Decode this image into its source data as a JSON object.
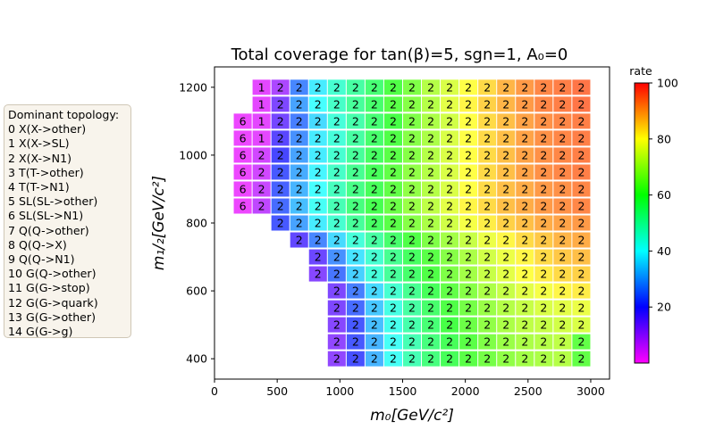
{
  "chart_data": {
    "type": "heatmap",
    "title": "Total coverage for tan(β)=5, sgn=1, A₀=0",
    "xlabel": "m₀[GeV/c²]",
    "ylabel": "m₁/₂[GeV/c²]",
    "xlim": [
      0,
      3150
    ],
    "ylim": [
      340,
      1260
    ],
    "x_ticks": [
      0,
      500,
      1000,
      1500,
      2000,
      2500,
      3000
    ],
    "y_ticks": [
      400,
      600,
      800,
      1000,
      1200
    ],
    "grid": false,
    "colorbar": {
      "label": "rate",
      "range": [
        0,
        100
      ],
      "ticks": [
        20,
        40,
        60,
        80,
        100
      ],
      "colormap": "gist_rainbow_r"
    },
    "x_centers": [
      225,
      375,
      525,
      675,
      825,
      975,
      1125,
      1275,
      1425,
      1575,
      1725,
      1875,
      2025,
      2175,
      2325,
      2475,
      2625,
      2775,
      2925
    ],
    "y_centers": [
      1200,
      1150,
      1100,
      1050,
      1000,
      950,
      900,
      850,
      800,
      750,
      700,
      650,
      600,
      550,
      500,
      450,
      400
    ],
    "rows": [
      {
        "y": 1200,
        "x_start": 375,
        "labels": [
          1,
          2,
          2,
          2,
          2,
          2,
          2,
          2,
          2,
          2,
          2,
          2,
          2,
          2,
          2,
          2,
          2,
          2
        ],
        "rates": [
          3,
          9,
          27,
          38,
          45,
          50,
          55,
          61,
          66,
          72,
          76,
          80,
          84,
          88,
          91,
          93,
          94,
          95
        ]
      },
      {
        "y": 1150,
        "x_start": 375,
        "labels": [
          1,
          2,
          2,
          2,
          2,
          2,
          2,
          2,
          2,
          2,
          2,
          2,
          2,
          2,
          2,
          2,
          2,
          2
        ],
        "rates": [
          3,
          14,
          30,
          40,
          46,
          51,
          56,
          62,
          67,
          72,
          77,
          81,
          85,
          88,
          91,
          93,
          94,
          95
        ]
      },
      {
        "y": 1100,
        "x_start": 225,
        "labels": [
          6,
          1,
          2,
          2,
          2,
          2,
          2,
          2,
          2,
          2,
          2,
          2,
          2,
          2,
          2,
          2,
          2,
          2,
          2
        ],
        "rates": [
          2,
          3,
          15,
          26,
          36,
          44,
          49,
          55,
          60,
          66,
          71,
          75,
          80,
          84,
          87,
          90,
          92,
          93,
          94
        ]
      },
      {
        "y": 1050,
        "x_start": 225,
        "labels": [
          6,
          1,
          2,
          2,
          2,
          2,
          2,
          2,
          2,
          2,
          2,
          2,
          2,
          2,
          2,
          2,
          2,
          2,
          2
        ],
        "rates": [
          2,
          3,
          18,
          28,
          38,
          44,
          50,
          56,
          61,
          67,
          71,
          76,
          80,
          84,
          87,
          90,
          92,
          93,
          94
        ]
      },
      {
        "y": 1000,
        "x_start": 225,
        "labels": [
          6,
          2,
          2,
          2,
          2,
          2,
          2,
          2,
          2,
          2,
          2,
          2,
          2,
          2,
          2,
          2,
          2,
          2,
          2
        ],
        "rates": [
          2,
          5,
          20,
          30,
          38,
          45,
          51,
          57,
          62,
          67,
          72,
          76,
          80,
          84,
          87,
          90,
          92,
          93,
          94
        ]
      },
      {
        "y": 950,
        "x_start": 225,
        "labels": [
          6,
          2,
          2,
          2,
          2,
          2,
          2,
          2,
          2,
          2,
          2,
          2,
          2,
          2,
          2,
          2,
          2,
          2,
          2
        ],
        "rates": [
          2,
          5,
          22,
          31,
          39,
          46,
          52,
          58,
          63,
          68,
          72,
          76,
          80,
          84,
          87,
          90,
          92,
          93,
          94
        ]
      },
      {
        "y": 900,
        "x_start": 225,
        "labels": [
          6,
          2,
          2,
          2,
          2,
          2,
          2,
          2,
          2,
          2,
          2,
          2,
          2,
          2,
          2,
          2,
          2,
          2,
          2
        ],
        "rates": [
          2,
          6,
          23,
          32,
          40,
          47,
          53,
          58,
          63,
          68,
          72,
          76,
          80,
          84,
          87,
          89,
          91,
          92,
          93
        ]
      },
      {
        "y": 850,
        "x_start": 225,
        "labels": [
          6,
          2,
          2,
          2,
          2,
          2,
          2,
          2,
          2,
          2,
          2,
          2,
          2,
          2,
          2,
          2,
          2,
          2,
          2
        ],
        "rates": [
          2,
          7,
          24,
          33,
          41,
          48,
          54,
          59,
          64,
          69,
          73,
          77,
          81,
          84,
          87,
          89,
          91,
          92,
          93
        ]
      },
      {
        "y": 800,
        "x_start": 525,
        "labels": [
          2,
          2,
          2,
          2,
          2,
          2,
          2,
          2,
          2,
          2,
          2,
          2,
          2,
          2,
          2,
          2,
          2
        ],
        "rates": [
          22,
          30,
          38,
          45,
          51,
          57,
          62,
          67,
          71,
          75,
          79,
          82,
          85,
          87,
          89,
          90,
          91
        ]
      },
      {
        "y": 750,
        "x_start": 675,
        "labels": [
          2,
          2,
          2,
          2,
          2,
          2,
          2,
          2,
          2,
          2,
          2,
          2,
          2,
          2,
          2,
          2
        ],
        "rates": [
          17,
          27,
          36,
          44,
          50,
          56,
          61,
          66,
          70,
          74,
          78,
          81,
          84,
          86,
          88,
          89
        ]
      },
      {
        "y": 700,
        "x_start": 825,
        "labels": [
          2,
          2,
          2,
          2,
          2,
          2,
          2,
          2,
          2,
          2,
          2,
          2,
          2,
          2,
          2
        ],
        "rates": [
          16,
          28,
          37,
          45,
          52,
          57,
          62,
          67,
          71,
          75,
          78,
          81,
          84,
          86,
          87
        ]
      },
      {
        "y": 650,
        "x_start": 825,
        "labels": [
          2,
          2,
          2,
          2,
          2,
          2,
          2,
          2,
          2,
          2,
          2,
          2,
          2,
          2,
          2
        ],
        "rates": [
          13,
          25,
          35,
          44,
          51,
          56,
          61,
          66,
          70,
          74,
          77,
          80,
          82,
          84,
          85
        ]
      },
      {
        "y": 600,
        "x_start": 975,
        "labels": [
          2,
          2,
          2,
          2,
          2,
          2,
          2,
          2,
          2,
          2,
          2,
          2,
          2,
          2
        ],
        "rates": [
          14,
          26,
          36,
          45,
          52,
          58,
          63,
          67,
          71,
          74,
          77,
          79,
          81,
          82
        ]
      },
      {
        "y": 550,
        "x_start": 975,
        "labels": [
          2,
          2,
          2,
          2,
          2,
          2,
          2,
          2,
          2,
          2,
          2,
          2,
          2,
          2
        ],
        "rates": [
          14,
          24,
          34,
          43,
          50,
          56,
          61,
          65,
          69,
          72,
          74,
          76,
          77,
          78
        ]
      },
      {
        "y": 500,
        "x_start": 975,
        "labels": [
          2,
          2,
          2,
          2,
          2,
          2,
          2,
          2,
          2,
          2,
          2,
          2,
          2,
          2
        ],
        "rates": [
          13,
          22,
          33,
          42,
          49,
          55,
          60,
          64,
          68,
          71,
          73,
          74,
          75,
          76
        ]
      },
      {
        "y": 450,
        "x_start": 975,
        "labels": [
          2,
          2,
          2,
          2,
          2,
          2,
          2,
          2,
          2,
          2,
          2,
          2,
          2,
          2
        ],
        "rates": [
          12,
          22,
          32,
          41,
          48,
          54,
          58,
          62,
          66,
          69,
          71,
          72,
          73,
          63
        ]
      },
      {
        "y": 400,
        "x_start": 975,
        "labels": [
          2,
          2,
          2,
          2,
          2,
          2,
          2,
          2,
          2,
          2,
          2,
          2,
          2,
          2
        ],
        "rates": [
          12,
          21,
          32,
          41,
          48,
          54,
          58,
          62,
          65,
          68,
          70,
          71,
          72,
          63
        ]
      }
    ]
  },
  "legend": {
    "title": "Dominant topology:",
    "items": [
      "0 X(X->other)",
      "1 X(X->SL)",
      "2 X(X->N1)",
      "3 T(T->other)",
      "4 T(T->N1)",
      "5 SL(SL->other)",
      "6 SL(SL->N1)",
      "7 Q(Q->other)",
      "8 Q(Q->X)",
      "9 Q(Q->N1)",
      "10 G(Q->other)",
      "11 G(G->stop)",
      "12 G(G->quark)",
      "13 G(G->other)",
      "14 G(G->g)"
    ]
  }
}
